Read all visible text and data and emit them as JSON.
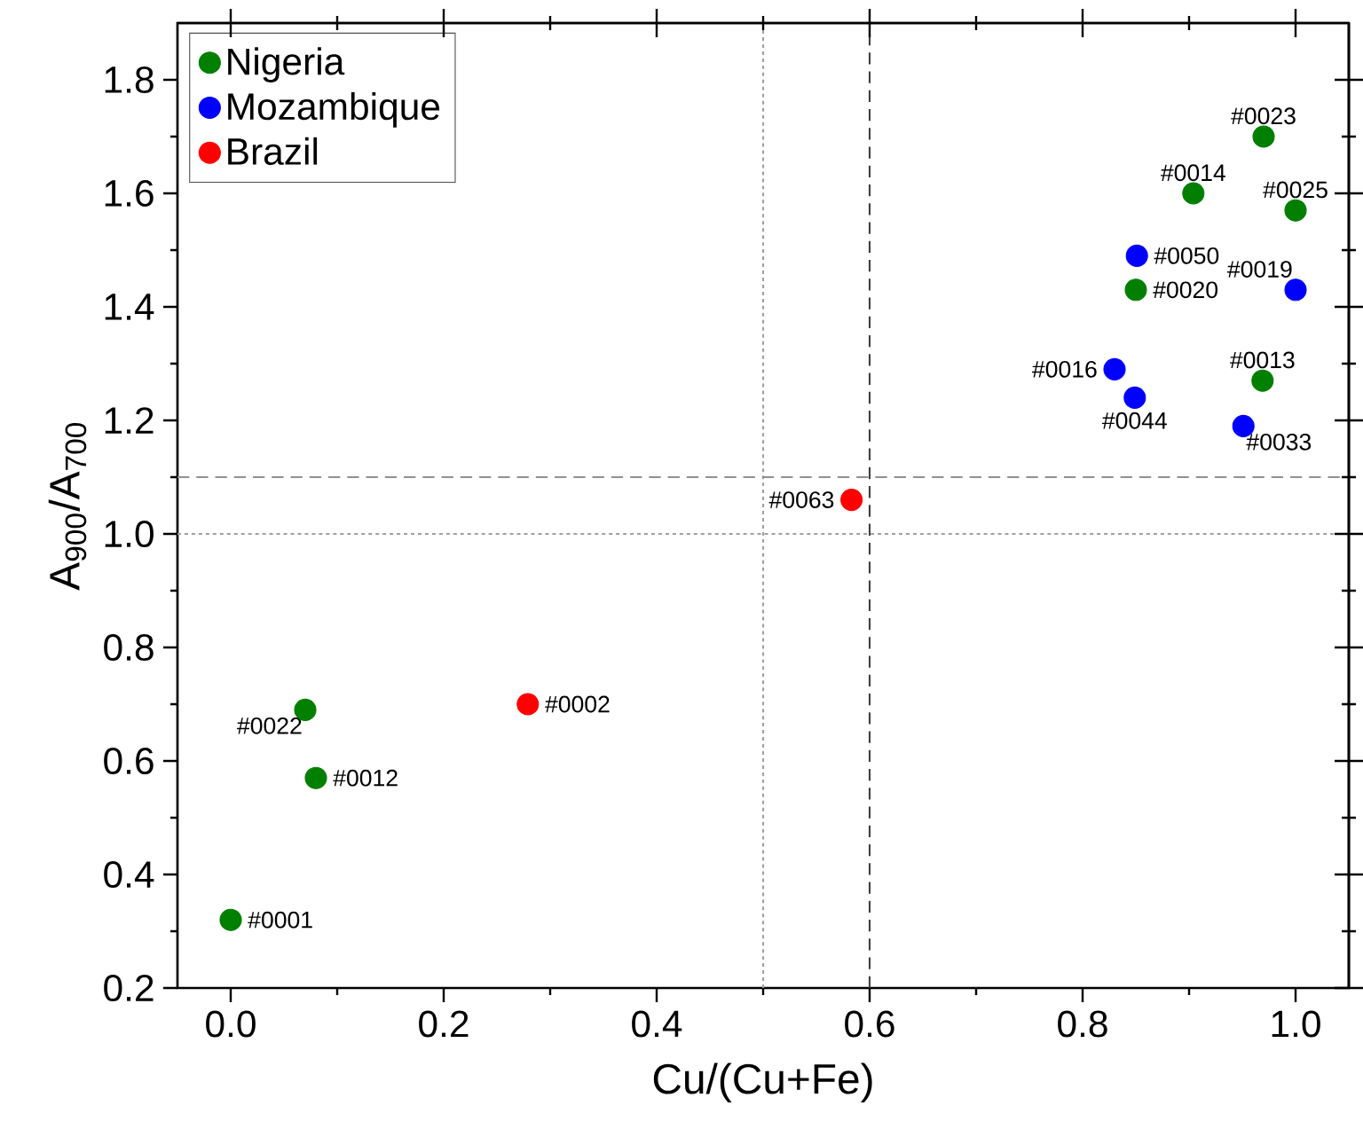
{
  "chart_data": {
    "type": "scatter",
    "xlabel": "Cu/(Cu+Fe)",
    "ylabel": "A$_{900}$/A$_{700}$",
    "marker": "circle",
    "legend": "top left",
    "grid": false,
    "xlim": [
      -0.05,
      1.05
    ],
    "ylim": [
      0.2,
      1.9
    ],
    "xticks": [
      {
        "value": 0,
        "label": "0.0"
      },
      {
        "value": 0.2,
        "label": "0.2"
      },
      {
        "value": 0.4,
        "label": "0.4"
      },
      {
        "value": 0.6,
        "label": "0.6"
      },
      {
        "value": 0.8,
        "label": "0.8"
      },
      {
        "value": 1,
        "label": "1.0"
      }
    ],
    "yticks": [
      0.2,
      0.4,
      0.6,
      0.8,
      {
        "value": 1,
        "label": "1.0"
      },
      1.2,
      1.4,
      1.6,
      1.8
    ],
    "series": [
      {
        "name": "Nigeria",
        "color": "#007f00",
        "x": [
          0,
          0.08,
          0.07,
          0.85,
          0.904,
          0.97,
          1.0,
          0.969
        ],
        "values": [
          0.32,
          0.57,
          0.69,
          1.43,
          1.6,
          1.7,
          1.57,
          1.27
        ]
      },
      {
        "name": "Mozambique",
        "color": "#0000ff",
        "x": [
          0.83,
          0.849,
          0.851,
          1.0,
          0.951
        ],
        "values": [
          1.29,
          1.24,
          1.49,
          1.43,
          1.19
        ]
      },
      {
        "name": "Brazil",
        "color": "#ff0000",
        "x": [
          0.279,
          0.583
        ],
        "values": [
          0.7,
          1.06
        ]
      }
    ],
    "ref_lines": [
      {
        "axis": "x",
        "value": 0.5,
        "color": "#a0a0a0",
        "line_style": "dotted"
      },
      {
        "axis": "x",
        "value": 0.6,
        "color": "#404040",
        "line_style": "dashed"
      },
      {
        "axis": "y",
        "value": 1.0,
        "color": "#a0a0a0",
        "line_style": "dotted"
      },
      {
        "axis": "y",
        "value": 1.1,
        "color": "#909090",
        "line_style": "dashed"
      }
    ],
    "annotations": [
      {
        "text": "#0001",
        "x": 0,
        "y": 0.32
      },
      {
        "text": "#0012",
        "x": 0.08,
        "y": 0.57
      },
      {
        "text": "#0022",
        "x": 0.07,
        "y": 0.69
      },
      {
        "text": "#0020",
        "x": 0.85,
        "y": 1.43
      },
      {
        "text": "#0014",
        "x": 0.904,
        "y": 1.6
      },
      {
        "text": "#0023",
        "x": 0.97,
        "y": 1.7
      },
      {
        "text": "#0025",
        "x": 1.0,
        "y": 1.57
      },
      {
        "text": "#0013",
        "x": 0.969,
        "y": 1.27
      },
      {
        "text": "#0016",
        "x": 0.83,
        "y": 1.29
      },
      {
        "text": "#0044",
        "x": 0.849,
        "y": 1.24
      },
      {
        "text": "#0050",
        "x": 0.851,
        "y": 1.49
      },
      {
        "text": "#0019",
        "x": 1.0,
        "y": 1.43
      },
      {
        "text": "#0033",
        "x": 0.951,
        "y": 1.19
      },
      {
        "text": "#0002",
        "x": 0.279,
        "y": 0.7
      },
      {
        "text": "#0063",
        "x": 0.583,
        "y": 1.06
      }
    ]
  }
}
